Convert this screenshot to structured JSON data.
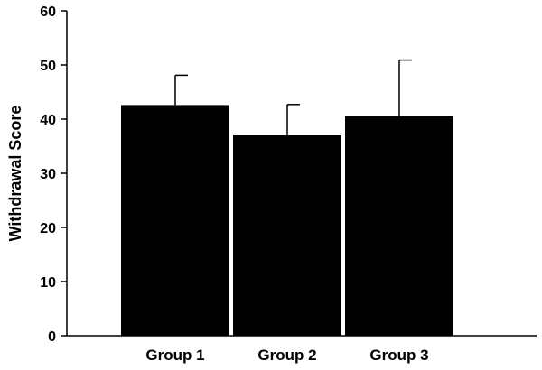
{
  "chart_data": {
    "type": "bar",
    "title": "",
    "xlabel": "",
    "ylabel": "Withdrawal Score",
    "categories": [
      "Group 1",
      "Group 2",
      "Group 3"
    ],
    "values": [
      42.6,
      37.0,
      40.6
    ],
    "error_upper": [
      48.1,
      42.7,
      50.9
    ],
    "ylim": [
      0,
      60
    ],
    "yticks": [
      0,
      10,
      20,
      30,
      40,
      50,
      60
    ],
    "yticks_labels": [
      "0",
      "10",
      "20",
      "30",
      "40",
      "50",
      "60"
    ],
    "grid": false,
    "legend": "none",
    "bar_color": "#000000",
    "axis_color": "#000000"
  }
}
